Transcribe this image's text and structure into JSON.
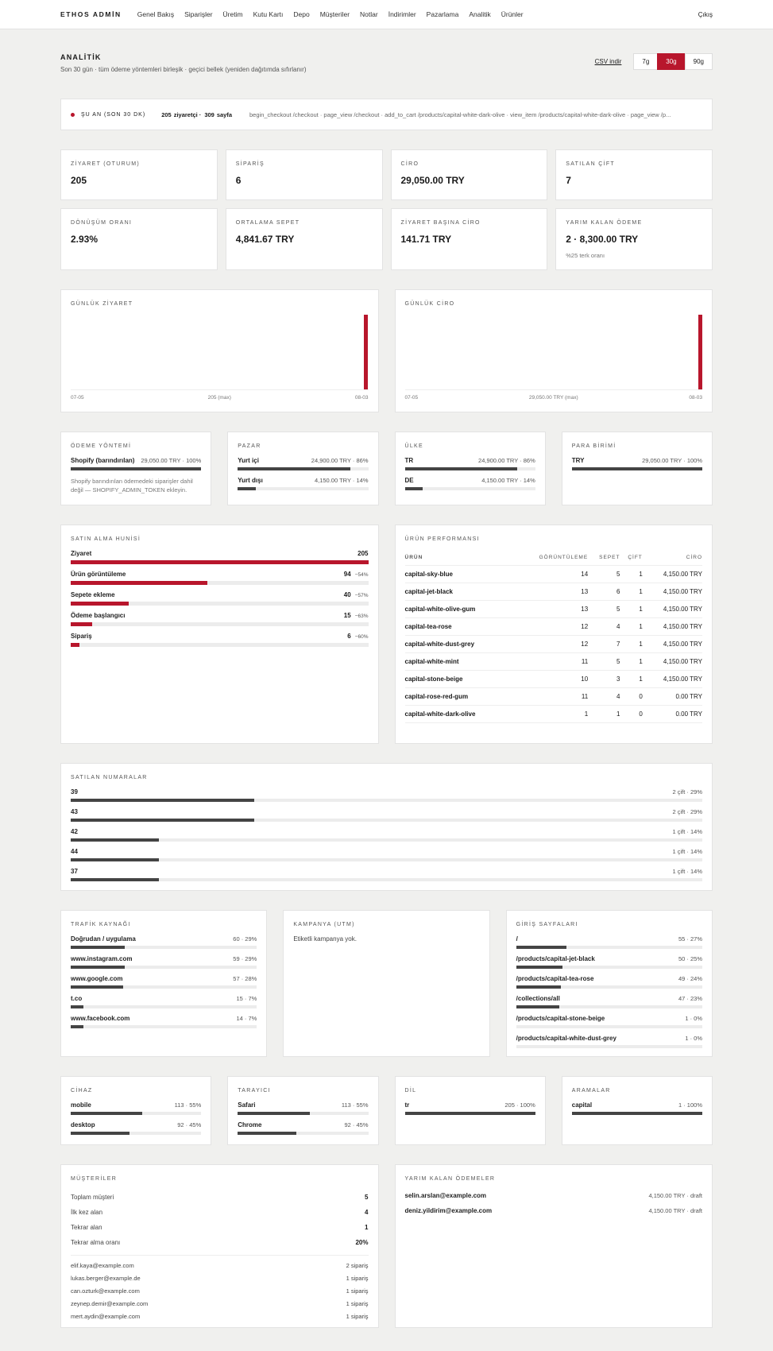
{
  "nav": {
    "brand": "ETHOS ADMİN",
    "links": [
      "Genel Bakış",
      "Siparişler",
      "Üretim",
      "Kutu Kartı",
      "Depo",
      "Müşteriler",
      "Notlar",
      "İndirimler",
      "Pazarlama",
      "Analitik",
      "Ürünler"
    ],
    "logout": "Çıkış"
  },
  "header": {
    "title": "ANALİTİK",
    "subtitle": "Son 30 gün · tüm ödeme yöntemleri birleşik · geçici bellek (yeniden dağıtımda sıfırlanır)",
    "csv": "CSV indir",
    "ranges": [
      "7g",
      "30g",
      "90g"
    ]
  },
  "live": {
    "label": "ŞU AN (SON 30 DK)",
    "visitors": 205,
    "visitors_text": "ziyaretçi ·",
    "pages": 309,
    "pages_text": "sayfa",
    "events": "begin_checkout /checkout · page_view /checkout · add_to_cart /products/capital-white-dark-olive · view_item /products/capital-white-dark-olive · page_view /p..."
  },
  "kpis": [
    {
      "label": "ZİYARET (OTURUM)",
      "value": 205
    },
    {
      "label": "SİPARİŞ",
      "value": 6
    },
    {
      "label": "CİRO",
      "value": "29,050.00 TRY"
    },
    {
      "label": "SATILAN ÇİFT",
      "value": 7
    },
    {
      "label": "DÖNÜŞÜM ORANI",
      "value": "2.93%"
    },
    {
      "label": "ORTALAMA SEPET",
      "value": "4,841.67 TRY"
    },
    {
      "label": "ZİYARET BAŞINA CİRO",
      "value": "141.71 TRY"
    },
    {
      "label": "YARIM KALAN ÖDEME",
      "value": "2 · 8,300.00 TRY",
      "note": "%25 terk oranı"
    }
  ],
  "daily_charts": [
    {
      "title": "GÜNLÜK ZİYARET",
      "values": [
        0,
        0,
        0,
        0,
        0,
        0,
        0,
        0,
        0,
        0,
        0,
        0,
        0,
        0,
        0,
        0,
        0,
        0,
        0,
        0,
        0,
        0,
        0,
        0,
        0,
        0,
        0,
        0,
        0,
        205
      ],
      "start_label": "07-05",
      "max_label": "205 (max)",
      "end_label": "08-03"
    },
    {
      "title": "GÜNLÜK CİRO",
      "values": [
        0,
        0,
        0,
        0,
        0,
        0,
        0,
        0,
        0,
        0,
        0,
        0,
        0,
        0,
        0,
        0,
        0,
        0,
        0,
        0,
        0,
        0,
        0,
        0,
        0,
        0,
        0,
        0,
        0,
        29050
      ],
      "start_label": "07-05",
      "max_label": "29,050.00 TRY (max)",
      "end_label": "08-03"
    }
  ],
  "breakdowns": [
    {
      "title": "ÖDEME YÖNTEMİ",
      "rows": [
        {
          "name": "Shopify (barındırılan)",
          "value": 100,
          "value_label": "29,050.00 TRY · 100%"
        }
      ],
      "note": "Shopify barındırılan ödemedeki siparişler dahil değil — SHOPIFY_ADMIN_TOKEN ekleyin."
    },
    {
      "title": "PAZAR",
      "rows": [
        {
          "name": "Yurt içi",
          "value": 86,
          "value_label": "24,900.00 TRY · 86%"
        },
        {
          "name": "Yurt dışı",
          "value": 14,
          "value_label": "4,150.00 TRY · 14%"
        }
      ]
    },
    {
      "title": "ÜLKE",
      "rows": [
        {
          "name": "TR",
          "value": 86,
          "value_label": "24,900.00 TRY · 86%"
        },
        {
          "name": "DE",
          "value": 14,
          "value_label": "4,150.00 TRY · 14%"
        }
      ]
    },
    {
      "title": "PARA BİRİMİ",
      "rows": [
        {
          "name": "TRY",
          "value": 100,
          "value_label": "29,050.00 TRY · 100%"
        }
      ]
    }
  ],
  "funnel": {
    "title": "SATIN ALMA HUNİSİ",
    "steps": [
      {
        "name": "Ziyaret",
        "value": 205
      },
      {
        "name": "Ürün görüntüleme",
        "value": 94,
        "drop": "−54%"
      },
      {
        "name": "Sepete ekleme",
        "value": 40,
        "drop": "−57%"
      },
      {
        "name": "Ödeme başlangıcı",
        "value": 15,
        "drop": "−63%"
      },
      {
        "name": "Sipariş",
        "value": 6,
        "drop": "−60%"
      }
    ]
  },
  "products": {
    "title": "ÜRÜN PERFORMANSI",
    "columns": [
      "ÜRÜN",
      "GÖRÜNTÜLEME",
      "SEPET",
      "ÇİFT",
      "CİRO"
    ],
    "rows": [
      [
        "capital-sky-blue",
        14,
        5,
        1,
        "4,150.00 TRY"
      ],
      [
        "capital-jet-black",
        13,
        6,
        1,
        "4,150.00 TRY"
      ],
      [
        "capital-white-olive-gum",
        13,
        5,
        1,
        "4,150.00 TRY"
      ],
      [
        "capital-tea-rose",
        12,
        4,
        1,
        "4,150.00 TRY"
      ],
      [
        "capital-white-dust-grey",
        12,
        7,
        1,
        "4,150.00 TRY"
      ],
      [
        "capital-white-mint",
        11,
        5,
        1,
        "4,150.00 TRY"
      ],
      [
        "capital-stone-beige",
        10,
        3,
        1,
        "4,150.00 TRY"
      ],
      [
        "capital-rose-red-gum",
        11,
        4,
        0,
        "0.00 TRY"
      ],
      [
        "capital-white-dark-olive",
        1,
        1,
        0,
        "0.00 TRY"
      ]
    ]
  },
  "sizes": {
    "title": "SATILAN NUMARALAR",
    "rows": [
      {
        "name": "39",
        "value": 29,
        "value_label": "2 çift · 29%"
      },
      {
        "name": "43",
        "value": 29,
        "value_label": "2 çift · 29%"
      },
      {
        "name": "42",
        "value": 14,
        "value_label": "1 çift · 14%"
      },
      {
        "name": "44",
        "value": 14,
        "value_label": "1 çift · 14%"
      },
      {
        "name": "37",
        "value": 14,
        "value_label": "1 çift · 14%"
      }
    ]
  },
  "traffic": {
    "title": "TRAFİK KAYNAĞI",
    "rows": [
      {
        "name": "Doğrudan / uygulama",
        "value": 29,
        "value_label": "60 · 29%"
      },
      {
        "name": "www.instagram.com",
        "value": 29,
        "value_label": "59 · 29%"
      },
      {
        "name": "www.google.com",
        "value": 28,
        "value_label": "57 · 28%"
      },
      {
        "name": "t.co",
        "value": 7,
        "value_label": "15 · 7%"
      },
      {
        "name": "www.facebook.com",
        "value": 7,
        "value_label": "14 · 7%"
      }
    ]
  },
  "campaign": {
    "title": "KAMPANYA (UTM)",
    "empty": "Etiketli kampanya yok."
  },
  "landing": {
    "title": "GİRİŞ SAYFALARI",
    "rows": [
      {
        "name": "/",
        "value": 27,
        "value_label": "55 · 27%"
      },
      {
        "name": "/products/capital-jet-black",
        "value": 25,
        "value_label": "50 · 25%"
      },
      {
        "name": "/products/capital-tea-rose",
        "value": 24,
        "value_label": "49 · 24%"
      },
      {
        "name": "/collections/all",
        "value": 23,
        "value_label": "47 · 23%"
      },
      {
        "name": "/products/capital-stone-beige",
        "value": 0,
        "value_label": "1 · 0%"
      },
      {
        "name": "/products/capital-white-dust-grey",
        "value": 0,
        "value_label": "1 · 0%"
      }
    ]
  },
  "devices": [
    {
      "title": "CİHAZ",
      "rows": [
        {
          "name": "mobile",
          "value": 55,
          "value_label": "113 · 55%"
        },
        {
          "name": "desktop",
          "value": 45,
          "value_label": "92 · 45%"
        }
      ]
    },
    {
      "title": "TARAYICI",
      "rows": [
        {
          "name": "Safari",
          "value": 55,
          "value_label": "113 · 55%"
        },
        {
          "name": "Chrome",
          "value": 45,
          "value_label": "92 · 45%"
        }
      ]
    },
    {
      "title": "DİL",
      "rows": [
        {
          "name": "tr",
          "value": 100,
          "value_label": "205 · 100%"
        }
      ]
    },
    {
      "title": "ARAMALAR",
      "rows": [
        {
          "name": "capital",
          "value": 100,
          "value_label": "1 · 100%"
        }
      ]
    }
  ],
  "customers": {
    "title": "MÜŞTERİLER",
    "stats": [
      [
        "Toplam müşteri",
        5
      ],
      [
        "İlk kez alan",
        4
      ],
      [
        "Tekrar alan",
        1
      ],
      [
        "Tekrar alma oranı",
        "20%"
      ]
    ],
    "list": [
      [
        "elif.kaya@example.com",
        "2 sipariş"
      ],
      [
        "lukas.berger@example.de",
        "1 sipariş"
      ],
      [
        "can.ozturk@example.com",
        "1 sipariş"
      ],
      [
        "zeynep.demir@example.com",
        "1 sipariş"
      ],
      [
        "mert.aydin@example.com",
        "1 sipariş"
      ]
    ]
  },
  "abandoned": {
    "title": "YARIM KALAN ÖDEMELER",
    "rows": [
      [
        "selin.arslan@example.com",
        "4,150.00 TRY · draft"
      ],
      [
        "deniz.yildirim@example.com",
        "4,150.00 TRY · draft"
      ]
    ]
  }
}
